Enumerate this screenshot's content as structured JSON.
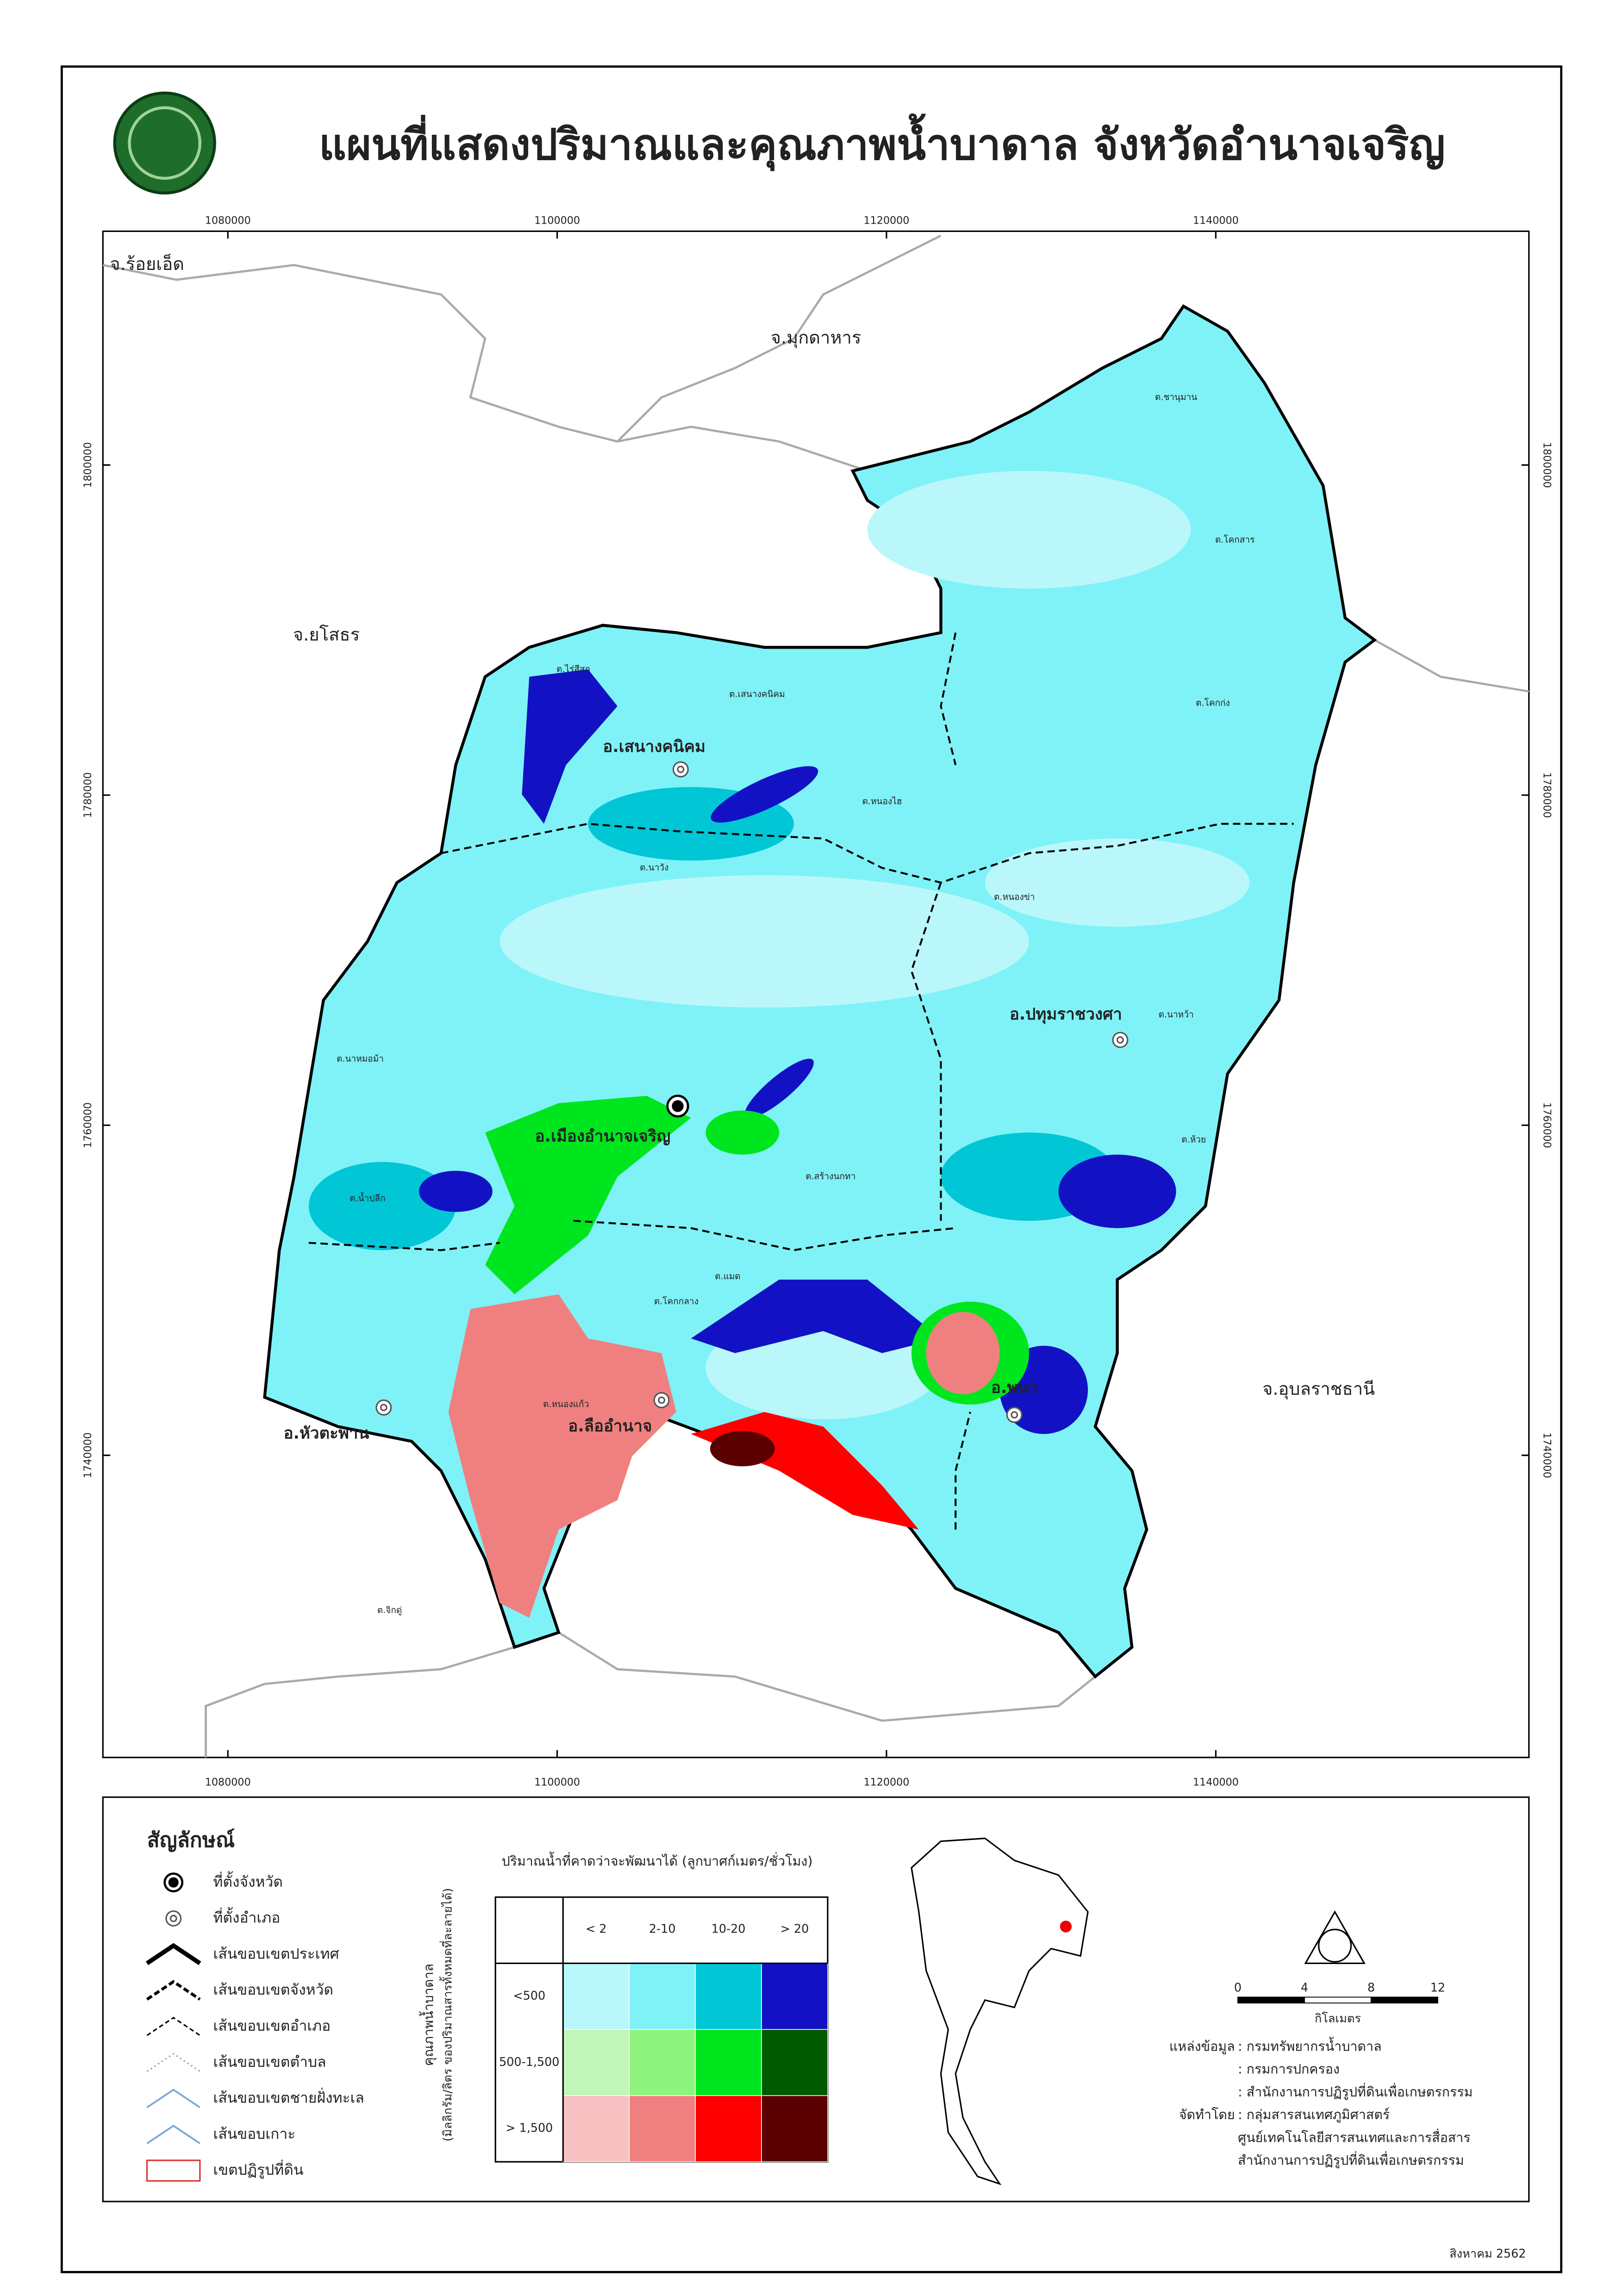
{
  "header": {
    "title": "แผนที่แสดงปริมาณและคุณภาพน้ำบาดาล จังหวัดอำนาจเจริญ"
  },
  "map": {
    "x_ticks": [
      1080000,
      1100000,
      1120000,
      1140000
    ],
    "y_ticks": [
      1800000,
      1780000,
      1760000,
      1740000
    ],
    "provinces": [
      "จ.ร้อยเอ็ด",
      "จ.มุกดาหาร",
      "จ.ยโสธร",
      "จ.อุบลราชธานี"
    ],
    "districts": [
      "อ.เสนางคนิคม",
      "อ.เมืองอำนาจเจริญ",
      "อ.ปทุมราชวงศา",
      "อ.หัวตะพาน",
      "อ.ลืออำนาจ",
      "อ.พนา"
    ],
    "subdistricts": [
      "ต.ชานุมาน",
      "ต.โคกสาร",
      "ต.โคกก่ง",
      "ต.ไร่สีสุก",
      "ต.เสนางคนิคม",
      "ต.หนองไฮ",
      "ต.นาวัง",
      "ต.หนองข่า",
      "ต.นาหว้า",
      "ต.สร้างนกทา",
      "ต.โคกกลาง",
      "ต.แมด",
      "ต.หนองแก้ว",
      "ต.จิกดู่",
      "ต.ห้วย",
      "ต.นาหมอม้า",
      "ต.น้ำปลีก"
    ]
  },
  "legend": {
    "title": "สัญลักษณ์",
    "items": [
      "ที่ตั้งจังหวัด",
      "ที่ตั้งอำเภอ",
      "เส้นขอบเขตประเทศ",
      "เส้นขอบเขตจังหวัด",
      "เส้นขอบเขตอำเภอ",
      "เส้นขอบเขตตำบล",
      "เส้นขอบเขตชายฝั่งทะเล",
      "เส้นขอบเกาะ",
      "เขตปฏิรูปที่ดิน"
    ]
  },
  "matrix": {
    "title": "ปริมาณน้ำที่คาดว่าจะพัฒนาได้ (ลูกบาศก์เมตร/ชั่วโมง)",
    "row_title": "คุณภาพน้ำบาดาล",
    "row_subtitle": "(มิลลิกรัม/ลิตร ของปริมาณสารทั้งหมดที่ละลายได้)",
    "columns": [
      "< 2",
      "2-10",
      "10-20",
      "> 20"
    ],
    "rows": [
      "<500",
      "500-1,500",
      "> 1,500"
    ],
    "colors": [
      [
        "#b9f7fb",
        "#7ff2f7",
        "#00c6d6",
        "#1212c4"
      ],
      [
        "#c2f5b8",
        "#8ef47e",
        "#00e61e",
        "#005a00"
      ],
      [
        "#f8c0c0",
        "#f08080",
        "#ff0000",
        "#5a0000"
      ]
    ]
  },
  "scale": {
    "ticks": [
      0,
      4,
      8,
      12
    ],
    "unit": "กิโลเมตร"
  },
  "sources": [
    {
      "label": "แหล่งข้อมูล",
      "text": ": กรมทรัพยากรน้ำบาดาล"
    },
    {
      "label": "",
      "text": ": กรมการปกครอง"
    },
    {
      "label": "",
      "text": ": สำนักงานการปฏิรูปที่ดินเพื่อเกษตรกรรม"
    },
    {
      "label": "จัดทำโดย",
      "text": ": กลุ่มสารสนเทศภูมิศาสตร์"
    },
    {
      "label": "",
      "text": "ศูนย์เทคโนโลยีสารสนเทศและการสื่อสาร"
    },
    {
      "label": "",
      "text": "สำนักงานการปฏิรูปที่ดินเพื่อเกษตรกรรม"
    }
  ],
  "date": "สิงหาคม 2562"
}
